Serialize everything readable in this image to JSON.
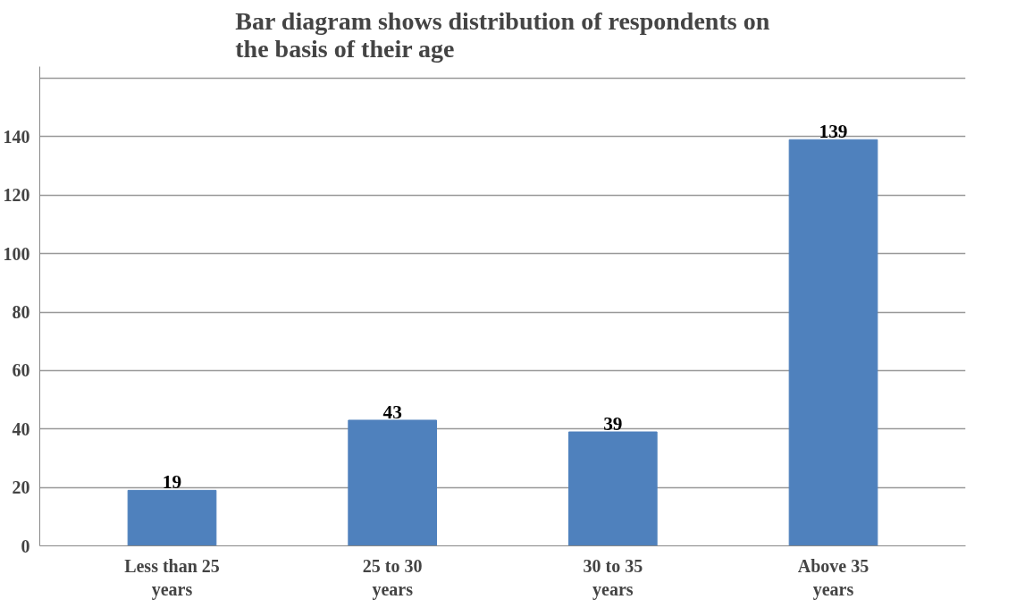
{
  "chart_data": {
    "type": "bar",
    "title": "Bar diagram shows distribution of respondents on the basis of their age",
    "categories": [
      "Less than 25 years",
      "25 to 30 years",
      "30 to 35 years",
      "Above 35 years"
    ],
    "values": [
      19,
      43,
      39,
      139
    ],
    "color": "#4f81bd",
    "ylim": [
      0,
      164
    ],
    "yticks": [
      0,
      20,
      40,
      60,
      80,
      100,
      120,
      140,
      {
        "value": 160,
        "label": null
      }
    ],
    "grid": "y",
    "data_labels": true
  }
}
